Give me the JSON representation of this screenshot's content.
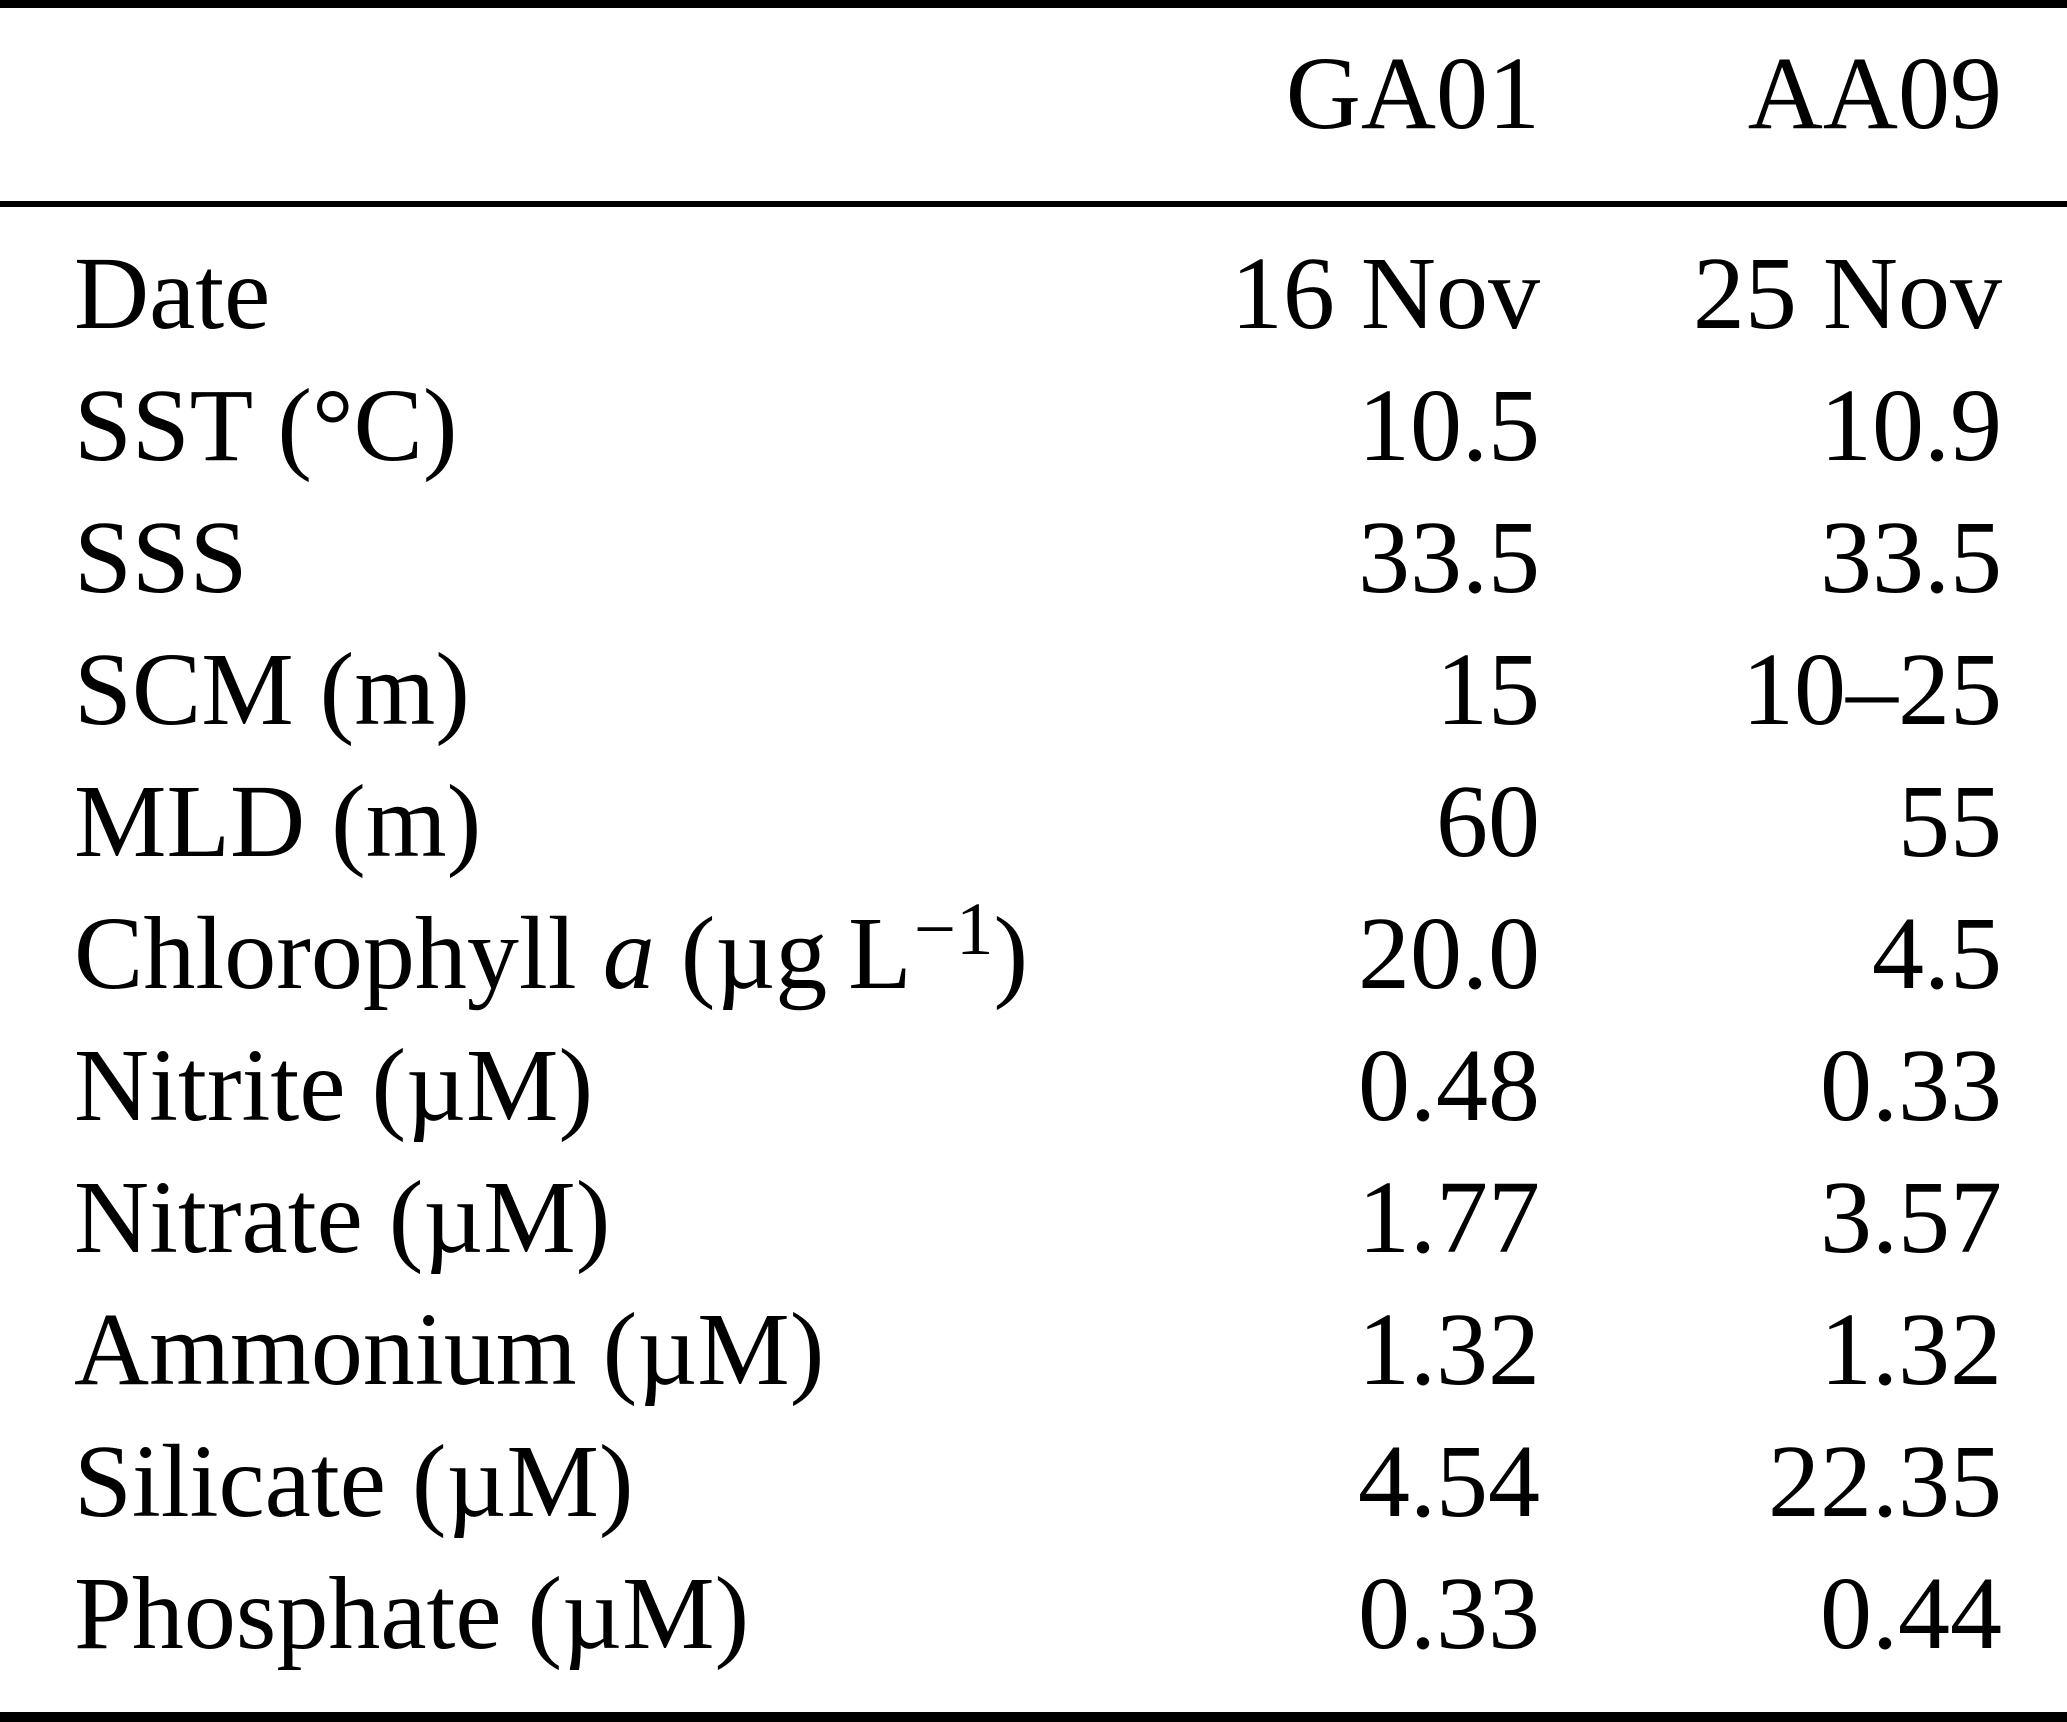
{
  "page": {
    "background_color": "#ffffff",
    "text_color": "#000000",
    "rule_color": "#000000"
  },
  "table": {
    "header": {
      "station_1": "GA01",
      "station_2": "AA09"
    },
    "rows": [
      {
        "label": "Date",
        "ga01": "16 Nov",
        "aa09": "25 Nov"
      },
      {
        "label": "SST (°C)",
        "ga01": "10.5",
        "aa09": "10.9"
      },
      {
        "label": "SSS",
        "ga01": "33.5",
        "aa09": "33.5"
      },
      {
        "label": "SCM (m)",
        "ga01": "15",
        "aa09": "10–25"
      },
      {
        "label": "MLD (m)",
        "ga01": "60",
        "aa09": "55"
      },
      {
        "label_parts": {
          "prefix": "Chlorophyll ",
          "species": "a",
          "unit_open": " (µg L",
          "superscript": "−1",
          "unit_close": ")"
        },
        "ga01": "20.0",
        "aa09": "4.5"
      },
      {
        "label": "Nitrite (µM)",
        "ga01": "0.48",
        "aa09": "0.33"
      },
      {
        "label": "Nitrate (µM)",
        "ga01": "1.77",
        "aa09": "3.57"
      },
      {
        "label": "Ammonium (µM)",
        "ga01": "1.32",
        "aa09": "1.32"
      },
      {
        "label": "Silicate (µM)",
        "ga01": "4.54",
        "aa09": "22.35"
      },
      {
        "label": "Phosphate (µM)",
        "ga01": "0.33",
        "aa09": "0.44"
      }
    ]
  }
}
